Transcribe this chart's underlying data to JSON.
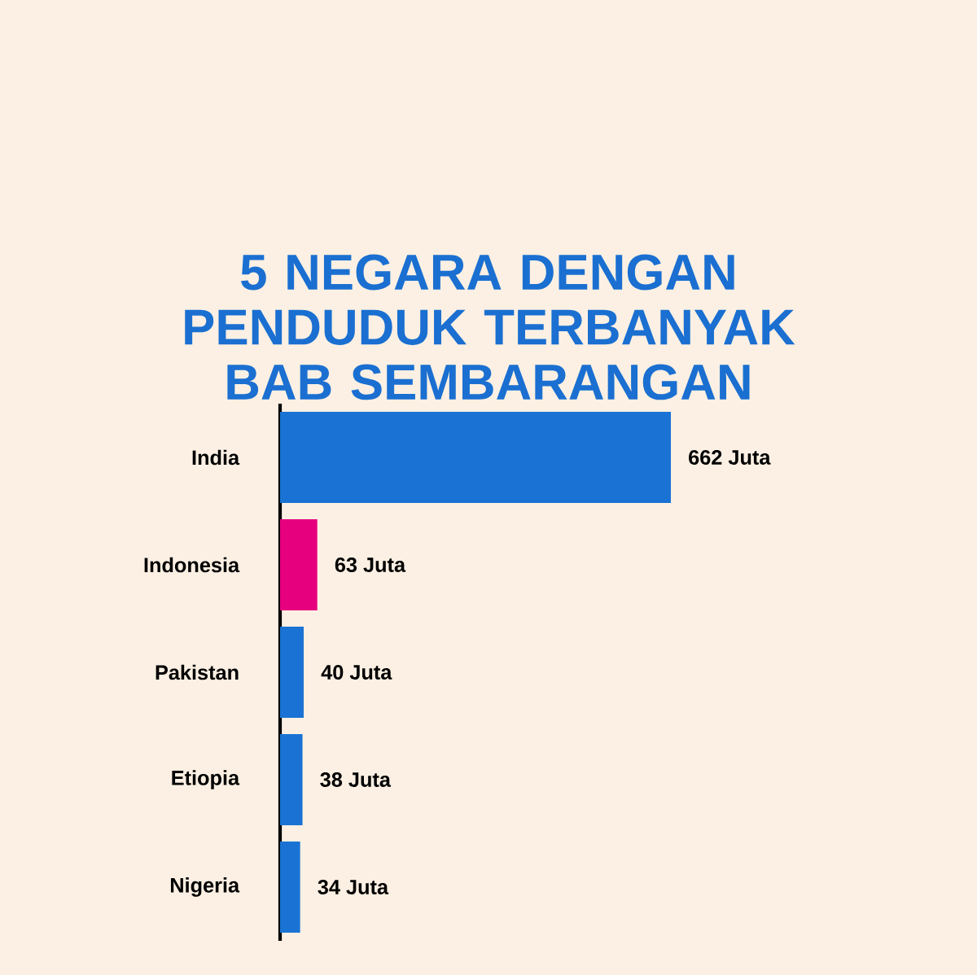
{
  "chart_data": {
    "type": "bar",
    "orientation": "horizontal",
    "title": "5 NEGARA DENGAN PENDUDUK TERBANYAK BAB SEMBARANGAN",
    "categories": [
      "India",
      "Indonesia",
      "Pakistan",
      "Etiopia",
      "Nigeria"
    ],
    "values": [
      662,
      63,
      40,
      38,
      34
    ],
    "colors": [
      "#1a73d4",
      "#e6007e",
      "#1a73d4",
      "#1a73d4",
      "#1a73d4"
    ],
    "value_labels": [
      "662 Juta",
      "63 Juta",
      "40 Juta",
      "38 Juta",
      "34 Juta"
    ]
  }
}
